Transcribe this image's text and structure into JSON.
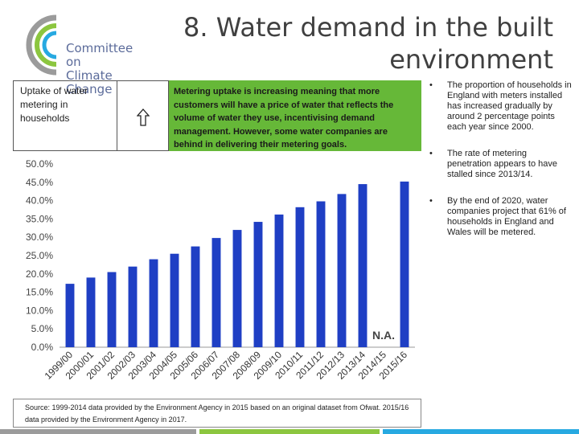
{
  "logo": {
    "line1": "Committee on",
    "line2": "Climate Change"
  },
  "title": {
    "line1": "8. Water demand in the built",
    "line2": "environment"
  },
  "uptake_label": "Uptake of water metering in households",
  "key_message": "Metering uptake is increasing meaning that more customers will have a price of water that reflects the volume of water they use, incentivising demand management. However, some water companies are behind in delivering their metering goals.",
  "bullets": [
    "The proportion of households in England with meters installed has increased gradually by around 2 percentage points each year since 2000.",
    "The rate of metering penetration appears to have stalled since 2013/14.",
    "By the end of 2020, water companies project that 61% of households in England and Wales will be metered."
  ],
  "bullet_symbol": "•",
  "source": "Source: 1999-2014 data provided by the Environment Agency in 2015 based on an original dataset from Ofwat. 2015/16 data provided by the Environment Agency in 2017.",
  "colors": {
    "bar": "#1f3fc4",
    "green": "#66b838",
    "logo_ring_gray": "#9b9b9b",
    "logo_ring_green": "#8cc63f",
    "logo_ring_blue": "#27a9e1"
  },
  "chart_data": {
    "type": "bar",
    "categories": [
      "1999/00",
      "2000/01",
      "2001/02",
      "2002/03",
      "2003/04",
      "2004/05",
      "2005/06",
      "2006/07",
      "2007/08",
      "2008/09",
      "2009/10",
      "2010/11",
      "2011/12",
      "2012/13",
      "2013/14",
      "2014/15",
      "2015/16"
    ],
    "values": [
      17.3,
      19.0,
      20.5,
      22.0,
      24.0,
      25.5,
      27.5,
      29.8,
      32.0,
      34.2,
      36.2,
      38.2,
      39.8,
      41.8,
      44.5,
      null,
      45.2
    ],
    "ylim": [
      0,
      50
    ],
    "yticks": [
      "0.0%",
      "5.0%",
      "10.0%",
      "15.0%",
      "20.0%",
      "25.0%",
      "30.0%",
      "35.0%",
      "40.0%",
      "45.0%",
      "50.0%"
    ],
    "ytick_values": [
      0,
      5,
      10,
      15,
      20,
      25,
      30,
      35,
      40,
      45,
      50
    ],
    "annotation": "N.A.",
    "grid": false,
    "legend": "none"
  }
}
